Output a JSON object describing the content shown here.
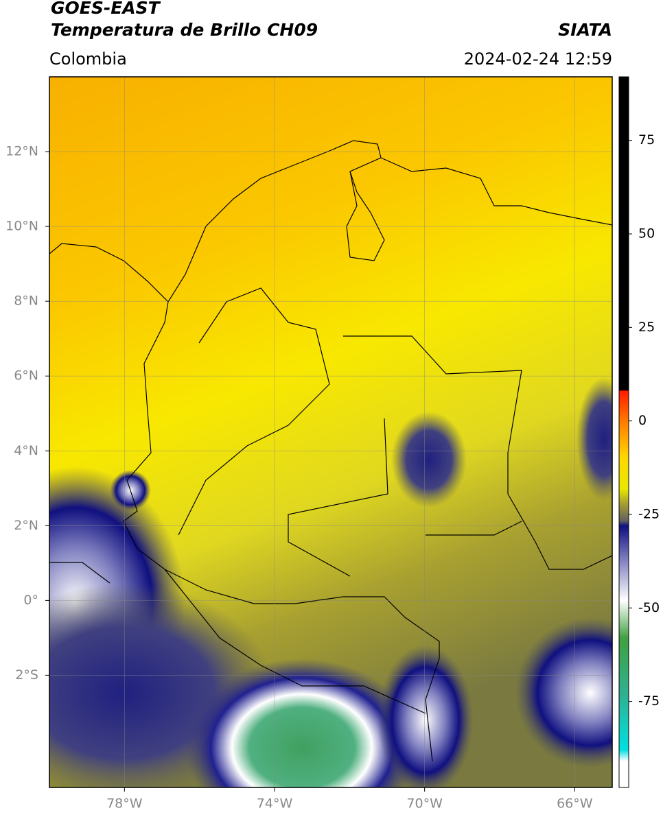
{
  "header": {
    "title": "GOES-EAST",
    "subtitle": "Temperatura de Brillo CH09",
    "region": "Colombia",
    "source": "SIATA",
    "datetime": "2024-02-24 12:59"
  },
  "map": {
    "xlim": [
      -80,
      -65
    ],
    "ylim": [
      -5,
      14
    ],
    "xticks": [
      {
        "value": -78,
        "label": "78°W"
      },
      {
        "value": -74,
        "label": "74°W"
      },
      {
        "value": -70,
        "label": "70°W"
      },
      {
        "value": -66,
        "label": "66°W"
      }
    ],
    "yticks": [
      {
        "value": 12,
        "label": "12°N"
      },
      {
        "value": 10,
        "label": "10°N"
      },
      {
        "value": 8,
        "label": "8°N"
      },
      {
        "value": 6,
        "label": "6°N"
      },
      {
        "value": 4,
        "label": "4°N"
      },
      {
        "value": 2,
        "label": "2°N"
      },
      {
        "value": 0,
        "label": "0°"
      },
      {
        "value": -2,
        "label": "2°S"
      }
    ],
    "grid": true
  },
  "colorbar": {
    "clim": [
      -98,
      92
    ],
    "ticks": [
      75,
      50,
      25,
      0,
      -25,
      -50,
      -75
    ]
  }
}
